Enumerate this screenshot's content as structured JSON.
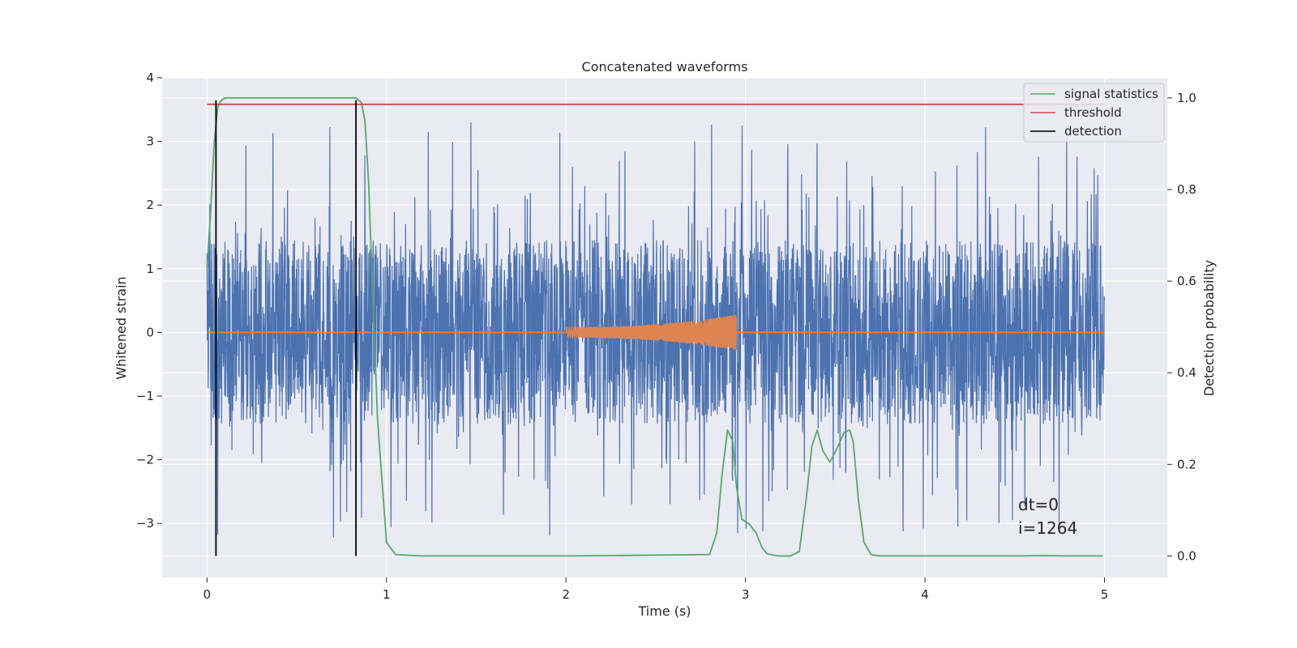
{
  "chart_data": {
    "type": "line",
    "title": "Concatenated waveforms",
    "xlabel": "Time (s)",
    "ylabel_left": "Whitened strain",
    "ylabel_right": "Detection probability",
    "xlim": [
      -0.25,
      5.35
    ],
    "ylim_left": [
      -3.85,
      4.0
    ],
    "ylim_right": [
      -0.047,
      1.044
    ],
    "x_ticks": [
      0,
      1,
      2,
      3,
      4,
      5
    ],
    "y_left_ticks": [
      4,
      3,
      2,
      1,
      0,
      -1,
      -2,
      -3
    ],
    "y_left_tick_labels": [
      "4",
      "3",
      "2",
      "1",
      "0",
      "−1",
      "−2",
      "−3"
    ],
    "y_right_ticks": [
      1.0,
      0.8,
      0.6,
      0.4,
      0.2,
      0.0
    ],
    "y_right_tick_labels": [
      "1.0",
      "0.8",
      "0.6",
      "0.4",
      "0.2",
      "0.0"
    ],
    "grid": true,
    "legend_placement": "upper right",
    "background": "#eaeaf2",
    "series": [
      {
        "name": "",
        "kind": "noise",
        "axis": "left",
        "color": "#4c72b0",
        "x_range": [
          0,
          5
        ],
        "typical_min": -1.5,
        "typical_max": 1.6,
        "extreme_min": -3.55,
        "extreme_max": 3.5
      },
      {
        "name": "",
        "kind": "chirp",
        "axis": "left",
        "color": "#dd8452",
        "x_range": [
          2.0,
          2.95
        ],
        "start_amplitude": 0.08,
        "end_amplitude": 0.28
      },
      {
        "name": "signal statistics",
        "axis": "right",
        "color": "#55a868",
        "x": [
          0.0,
          0.02,
          0.04,
          0.06,
          0.08,
          0.1,
          0.15,
          0.3,
          0.5,
          0.7,
          0.8,
          0.83,
          0.86,
          0.88,
          0.9,
          0.92,
          0.95,
          1.0,
          1.05,
          1.2,
          2.0,
          2.8,
          2.84,
          2.87,
          2.9,
          2.93,
          2.95,
          2.98,
          3.02,
          3.06,
          3.09,
          3.12,
          3.18,
          3.25,
          3.3,
          3.34,
          3.37,
          3.4,
          3.43,
          3.47,
          3.51,
          3.55,
          3.58,
          3.6,
          3.63,
          3.66,
          3.7,
          3.75,
          4.0,
          4.5,
          4.65,
          4.8,
          4.99
        ],
        "y": [
          0.63,
          0.75,
          0.9,
          0.98,
          0.995,
          1.0,
          1.0,
          1.0,
          1.0,
          1.0,
          1.0,
          1.0,
          0.99,
          0.95,
          0.82,
          0.6,
          0.3,
          0.03,
          0.003,
          0.0,
          0.0,
          0.003,
          0.05,
          0.18,
          0.275,
          0.25,
          0.15,
          0.08,
          0.07,
          0.05,
          0.02,
          0.005,
          0.0,
          0.0,
          0.01,
          0.13,
          0.24,
          0.275,
          0.23,
          0.205,
          0.235,
          0.27,
          0.275,
          0.25,
          0.12,
          0.03,
          0.003,
          0.0,
          0.0,
          0.0,
          0.001,
          0.0,
          0.0
        ]
      },
      {
        "name": "threshold",
        "axis": "right",
        "color": "#c44e52",
        "x": [
          0,
          5
        ],
        "y": [
          0.986,
          0.986
        ]
      },
      {
        "name": "detection",
        "kind": "vlines",
        "axis": "right",
        "color": "#000000",
        "x": [
          0.05,
          0.83
        ],
        "y_range": [
          0.0,
          0.995
        ]
      }
    ],
    "annotations": [
      "dt=0",
      "i=1264"
    ]
  }
}
